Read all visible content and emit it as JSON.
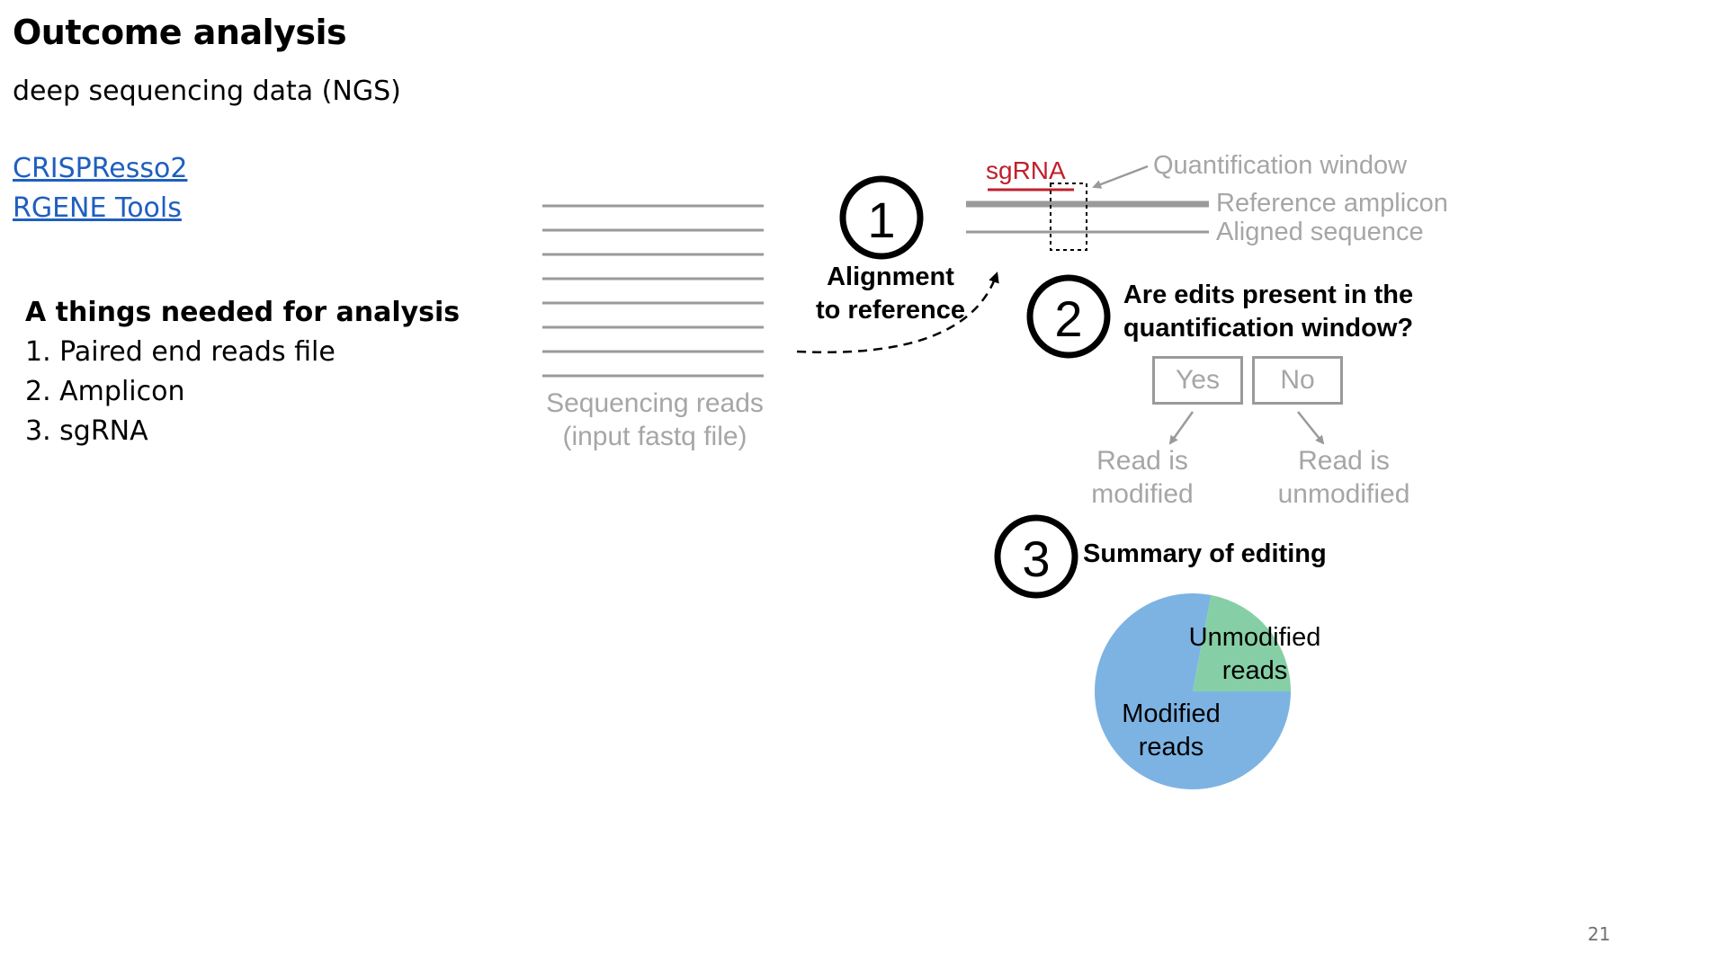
{
  "slide": {
    "title": "Outcome analysis",
    "subtitle": "deep sequencing data (NGS)",
    "links": [
      "CRISPResso2",
      "RGENE Tools"
    ],
    "needs": {
      "heading": "A things needed for analysis",
      "items": [
        "1. Paired end reads file",
        "2. Amplicon",
        "3. sgRNA"
      ]
    },
    "page_number": "21"
  },
  "diagram": {
    "reads_label_line1": "Sequencing reads",
    "reads_label_line2": "(input fastq file)",
    "step1_number": "1",
    "step1_label_line1": "Alignment",
    "step1_label_line2": "to reference",
    "sgrna_label": "sgRNA",
    "quant_window_label": "Quantification window",
    "reference_label": "Reference amplicon",
    "aligned_label": "Aligned sequence",
    "step2_number": "2",
    "step2_question_line1": "Are edits present in the",
    "step2_question_line2": "quantification window?",
    "yes_label": "Yes",
    "no_label": "No",
    "modified_line1": "Read is",
    "modified_line2": "modified",
    "unmodified_line1": "Read is",
    "unmodified_line2": "unmodified",
    "step3_number": "3",
    "step3_label": "Summary of editing",
    "pie_unmodified_line1": "Unmodified",
    "pie_unmodified_line2": "reads",
    "pie_modified_line1": "Modified",
    "pie_modified_line2": "reads",
    "pie_unmodified_fraction": 0.22,
    "colors": {
      "sgrna": "#c0202c",
      "gray_text": "#a6a6a6",
      "line_gray": "#9a9a9a",
      "modified": "#7db3e3",
      "unmodified": "#86cfa6",
      "link": "#1f5fbf"
    }
  }
}
